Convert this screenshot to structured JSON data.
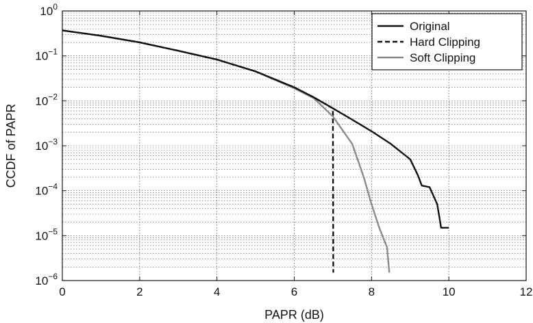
{
  "chart_data": {
    "type": "line",
    "title": "",
    "xlabel": "PAPR (dB)",
    "ylabel": "CCDF of PAPR",
    "xlim": [
      0,
      12
    ],
    "ylim": [
      1e-06,
      1
    ],
    "yscale": "log",
    "grid": true,
    "legend_position": "top-right",
    "x_ticks": [
      {
        "value": 0,
        "label": "0"
      },
      {
        "value": 2,
        "label": "2"
      },
      {
        "value": 4,
        "label": "4"
      },
      {
        "value": 6,
        "label": "6"
      },
      {
        "value": 8,
        "label": "8"
      },
      {
        "value": 10,
        "label": "10"
      },
      {
        "value": 12,
        "label": "12"
      }
    ],
    "y_ticks": [
      {
        "exp": 0,
        "base": "10",
        "sup": "0"
      },
      {
        "exp": -1,
        "base": "10",
        "sup": "−1"
      },
      {
        "exp": -2,
        "base": "10",
        "sup": "−2"
      },
      {
        "exp": -3,
        "base": "10",
        "sup": "−3"
      },
      {
        "exp": -4,
        "base": "10",
        "sup": "−4"
      },
      {
        "exp": -5,
        "base": "10",
        "sup": "−5"
      },
      {
        "exp": -6,
        "base": "10",
        "sup": "−6"
      }
    ],
    "series": [
      {
        "name": "Original",
        "color": "#111111",
        "dash": "solid",
        "points": [
          [
            0,
            0.37
          ],
          [
            1,
            0.28
          ],
          [
            2,
            0.2
          ],
          [
            3,
            0.13
          ],
          [
            4,
            0.083
          ],
          [
            5,
            0.045
          ],
          [
            6,
            0.02
          ],
          [
            6.5,
            0.012
          ],
          [
            7,
            0.0068
          ],
          [
            7.5,
            0.0038
          ],
          [
            8,
            0.0021
          ],
          [
            8.5,
            0.0011
          ],
          [
            9,
            0.0005
          ],
          [
            9.2,
            0.00022
          ],
          [
            9.3,
            0.00013
          ],
          [
            9.5,
            0.00012
          ],
          [
            9.7,
            5e-05
          ],
          [
            9.8,
            1.5e-05
          ],
          [
            10,
            1.5e-05
          ]
        ]
      },
      {
        "name": "Hard Clipping",
        "color": "#111111",
        "dash": "dashed",
        "points": [
          [
            0,
            0.37
          ],
          [
            1,
            0.28
          ],
          [
            2,
            0.2
          ],
          [
            3,
            0.13
          ],
          [
            4,
            0.083
          ],
          [
            5,
            0.045
          ],
          [
            6,
            0.02
          ],
          [
            6.5,
            0.012
          ],
          [
            7,
            0.0068
          ],
          [
            7.01,
            1.5e-06
          ]
        ]
      },
      {
        "name": "Soft Clipping",
        "color": "#8a8a8a",
        "dash": "solid",
        "points": [
          [
            0,
            0.37
          ],
          [
            1,
            0.28
          ],
          [
            2,
            0.2
          ],
          [
            3,
            0.13
          ],
          [
            4,
            0.083
          ],
          [
            5,
            0.045
          ],
          [
            6,
            0.019
          ],
          [
            6.5,
            0.0115
          ],
          [
            7,
            0.0045
          ],
          [
            7.5,
            0.0011
          ],
          [
            7.8,
            0.0002
          ],
          [
            8,
            5e-05
          ],
          [
            8.2,
            1.5e-05
          ],
          [
            8.4,
            5.5e-06
          ],
          [
            8.46,
            1.5e-06
          ]
        ]
      }
    ]
  }
}
